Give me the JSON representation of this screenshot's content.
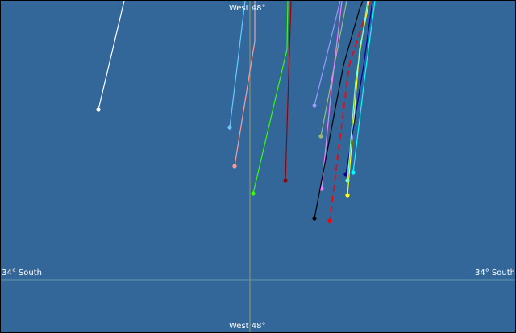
{
  "map": {
    "background": "#336699",
    "meridian_label_top": "West 48°",
    "meridian_label_bottom": "West 48°",
    "parallel_label_left": "34° South",
    "parallel_label_right": "34° South",
    "meridian_color": "#999966",
    "parallel_color": "#6699aa"
  },
  "tracks": [
    {
      "color": "#ffffff"
    },
    {
      "color": "#66ccff"
    },
    {
      "color": "#ff9999"
    },
    {
      "color": "#33ff00"
    },
    {
      "color": "#990000"
    },
    {
      "color": "#9999ff"
    },
    {
      "color": "#99bb77"
    },
    {
      "color": "#ff77ff"
    },
    {
      "color": "#000000"
    },
    {
      "color": "#ff0000",
      "dashed": true
    },
    {
      "color": "#ffff00"
    },
    {
      "color": "#000099"
    },
    {
      "color": "#77ffcc"
    },
    {
      "color": "#00ffff"
    }
  ]
}
